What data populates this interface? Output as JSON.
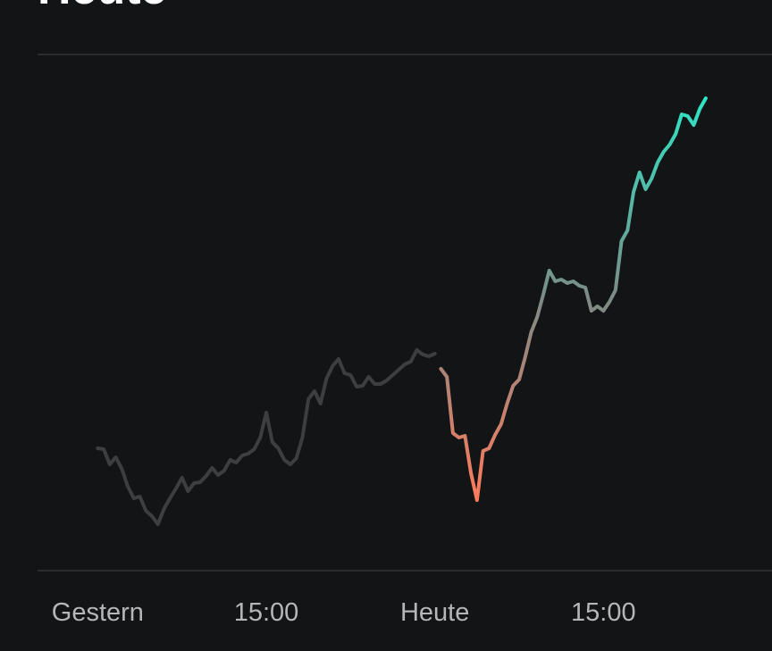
{
  "chart_data": {
    "type": "line",
    "title": "Heute",
    "xlim": [
      -2.5,
      28
    ],
    "ylim": [
      0,
      580
    ],
    "xticks": [
      {
        "value": 0,
        "label": "Gestern"
      },
      {
        "value": 7,
        "label": "15:00"
      },
      {
        "value": 14,
        "label": "Heute"
      },
      {
        "value": 21,
        "label": "15:00"
      }
    ],
    "series": [
      {
        "color": "#3c3e40",
        "x": [
          0,
          0.25,
          0.5,
          0.75,
          1,
          1.25,
          1.5,
          1.75,
          2,
          2.25,
          2.5,
          2.75,
          3,
          3.25,
          3.5,
          3.75,
          4,
          4.25,
          4.5,
          4.75,
          5,
          5.25,
          5.5,
          5.75,
          6,
          6.25,
          6.5,
          6.75,
          7,
          7.25,
          7.5,
          7.75,
          8,
          8.25,
          8.5,
          8.75,
          9,
          9.25,
          9.5,
          9.75,
          10,
          10.25,
          10.5,
          10.75,
          11,
          11.25,
          11.5,
          11.75,
          12,
          12.25,
          12.5,
          12.75,
          13,
          13.25,
          13.5,
          13.75,
          14
        ],
        "values": [
          138,
          137,
          120,
          128,
          115,
          95,
          82,
          84,
          68,
          62,
          53,
          70,
          82,
          93,
          105,
          90,
          99,
          100,
          107,
          116,
          108,
          113,
          125,
          122,
          130,
          132,
          137,
          150,
          178,
          145,
          138,
          125,
          120,
          127,
          150,
          193,
          202,
          188,
          216,
          230,
          238,
          222,
          220,
          207,
          208,
          218,
          210,
          210,
          214,
          220,
          226,
          232,
          235,
          248,
          243,
          241,
          244
        ]
      },
      {
        "gradient": [
          "#2ee6c6",
          "#7d8a86",
          "#ff7b5c"
        ],
        "x": [
          14.25,
          14.5,
          14.75,
          15,
          15.25,
          15.5,
          15.75,
          16,
          16.25,
          16.5,
          16.75,
          17,
          17.25,
          17.5,
          17.75,
          18,
          18.25,
          18.5,
          18.75,
          19,
          19.25,
          19.5,
          19.75,
          20,
          20.25,
          20.5,
          20.75,
          21,
          21.25,
          21.5,
          21.75,
          22,
          22.25,
          22.5,
          22.75,
          23,
          23.25,
          23.5,
          23.75,
          24,
          24.25,
          24.5,
          24.75,
          25,
          25.25
        ],
        "values": [
          227,
          218,
          155,
          150,
          152,
          110,
          80,
          135,
          138,
          153,
          165,
          188,
          208,
          215,
          240,
          268,
          285,
          310,
          337,
          325,
          327,
          323,
          325,
          320,
          318,
          292,
          297,
          292,
          302,
          315,
          370,
          382,
          425,
          447,
          428,
          440,
          458,
          470,
          478,
          490,
          512,
          510,
          500,
          518,
          530
        ]
      }
    ]
  }
}
